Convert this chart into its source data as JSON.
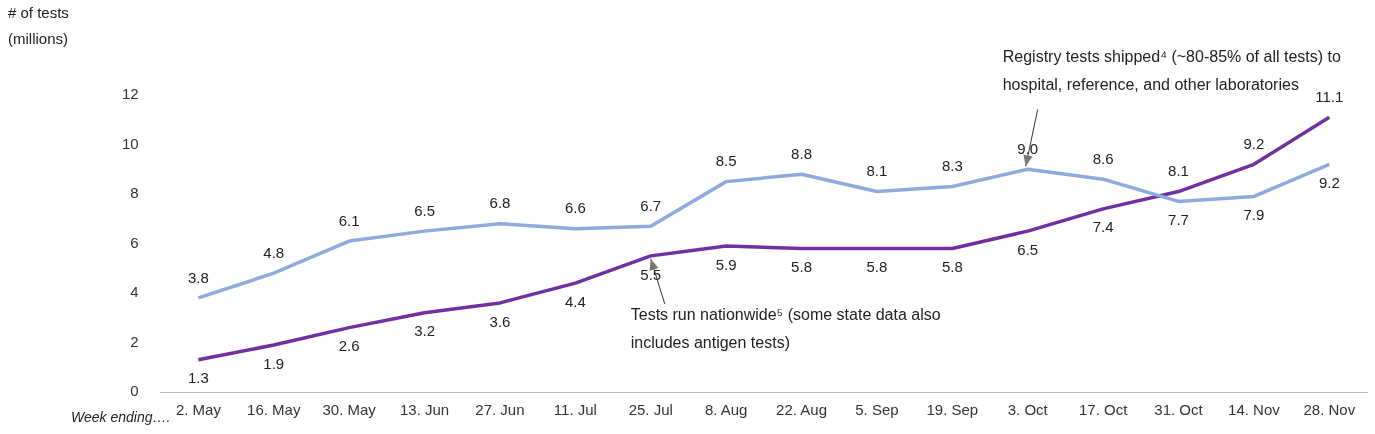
{
  "chart_data": {
    "type": "line",
    "ylabel": "# of tests (millions)",
    "xlabel": "Week ending….",
    "categories": [
      "2. May",
      "16. May",
      "30. May",
      "13. Jun",
      "27. Jun",
      "11. Jul",
      "25. Jul",
      "8. Aug",
      "22. Aug",
      "5. Sep",
      "19. Sep",
      "3. Oct",
      "17. Oct",
      "31. Oct",
      "14. Nov",
      "28. Nov"
    ],
    "series": [
      {
        "color": "#8faadc",
        "values": [
          3.8,
          4.8,
          6.1,
          6.5,
          6.8,
          6.6,
          6.7,
          8.5,
          8.8,
          8.1,
          8.3,
          9.0,
          8.6,
          7.7,
          7.9,
          9.2
        ],
        "value_labels": [
          "3.8",
          "4.8",
          "6.1",
          "6.5",
          "6.8",
          "6.6",
          "6.7",
          "8.5",
          "8.8",
          "8.1",
          "8.3",
          "9.0",
          "8.6",
          "7.7",
          "7.9",
          "9.2"
        ]
      },
      {
        "color": "#7030a0",
        "values": [
          1.3,
          1.9,
          2.6,
          3.2,
          3.6,
          4.4,
          5.5,
          5.9,
          5.8,
          5.8,
          5.8,
          6.5,
          7.4,
          8.1,
          9.2,
          11.1
        ],
        "value_labels": [
          "1.3",
          "1.9",
          "2.6",
          "3.2",
          "3.6",
          "4.4",
          "5.5",
          "5.9",
          "5.8",
          "5.8",
          "5.8",
          "6.5",
          "7.4",
          "8.1",
          "9.2",
          "11.1"
        ]
      }
    ],
    "ylim": [
      0,
      12
    ],
    "yticks": [
      0,
      2,
      4,
      6,
      8,
      10,
      12
    ],
    "grid": false,
    "legend": false,
    "marker": "none",
    "line_style": "solid",
    "annotations": [
      {
        "text": "Registry tests shipped⁴ (~80-85% of all tests) to hospital, reference, and other laboratories",
        "x": "3. Oct",
        "y": 9.0
      },
      {
        "text": "Tests run nationwide⁵ (some state data also includes antigen tests)",
        "x": "25. Jul",
        "y": 5.5
      }
    ]
  }
}
